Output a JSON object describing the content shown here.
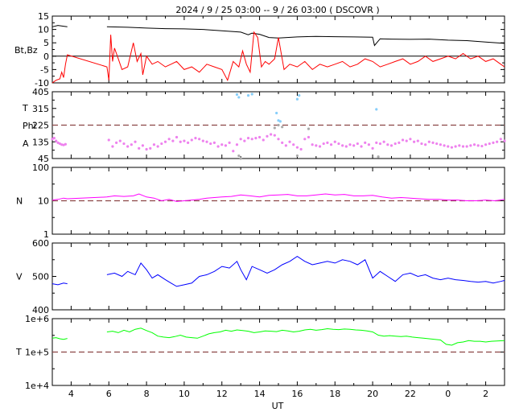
{
  "title": "2024 /   9 / 25   03:00  --   9 / 26   03:00 ( DSCOVR )",
  "x_axis": {
    "label": "UT",
    "ticks": [
      "4",
      "6",
      "8",
      "10",
      "12",
      "14",
      "16",
      "18",
      "20",
      "22",
      "0",
      "2"
    ],
    "range_hours": [
      3,
      27
    ]
  },
  "chart_data": [
    {
      "type": "line",
      "panel": "magnetic field",
      "ylabel": "Bt,Bz",
      "ylim": [
        -10,
        15
      ],
      "yticks": [
        "15",
        "10",
        "5",
        "0",
        "-5",
        "-10"
      ],
      "zero_line": 0,
      "series": [
        {
          "name": "Bt",
          "color": "#000000",
          "x": [
            3.0,
            3.3,
            3.6,
            3.8
          ],
          "y": [
            11,
            11.5,
            11.2,
            11
          ]
        },
        {
          "name": "Bt-2",
          "color": "#000000",
          "x": [
            5.9,
            7,
            8,
            9,
            10,
            11,
            12,
            13,
            13.4,
            13.6,
            14,
            14.5,
            15,
            16,
            17,
            18,
            19,
            20,
            20.1,
            20.4,
            21,
            22,
            23,
            24,
            25,
            26,
            27
          ],
          "y": [
            11,
            10.8,
            10.5,
            10.3,
            10.2,
            10.0,
            9.5,
            9.0,
            8.0,
            8.6,
            8.2,
            7.0,
            6.8,
            7.2,
            7.4,
            7.3,
            7.2,
            7.1,
            4.0,
            6.5,
            6.4,
            6.3,
            6.4,
            6.0,
            5.8,
            5.3,
            4.8
          ]
        },
        {
          "name": "Bz",
          "color": "#ff0000",
          "x": [
            3.0,
            3.2,
            3.4,
            3.5,
            3.6,
            3.7,
            3.8,
            5.9,
            6.0,
            6.1,
            6.2,
            6.3,
            6.5,
            6.7,
            7.0,
            7.3,
            7.5,
            7.7,
            7.8,
            8.0,
            8.3,
            8.6,
            9.0,
            9.3,
            9.6,
            10.0,
            10.4,
            10.8,
            11.2,
            11.6,
            12.0,
            12.3,
            12.6,
            12.9,
            13.1,
            13.3,
            13.5,
            13.7,
            13.9,
            14.1,
            14.3,
            14.5,
            14.8,
            15.0,
            15.3,
            15.6,
            16.0,
            16.4,
            16.8,
            17.2,
            17.6,
            18.0,
            18.4,
            18.8,
            19.2,
            19.6,
            20.0,
            20.4,
            20.8,
            21.2,
            21.6,
            22.0,
            22.4,
            22.8,
            23.2,
            23.6,
            24.0,
            24.4,
            24.8,
            25.2,
            25.6,
            26.0,
            26.4,
            26.8,
            27.0
          ],
          "y": [
            -10,
            -9,
            -8.5,
            -6,
            -8,
            -3,
            0.5,
            -4,
            -9,
            8,
            -2,
            3,
            -1,
            -5,
            -4,
            5,
            -2,
            1,
            -7,
            0,
            -3,
            -2,
            -4,
            -3,
            -2,
            -5,
            -4,
            -6,
            -3,
            -4,
            -5,
            -9,
            -2,
            -4,
            2,
            -3,
            -6,
            9,
            7,
            -4,
            -2,
            -3,
            -1,
            7,
            -5,
            -3,
            -4,
            -2,
            -5,
            -3,
            -4,
            -3,
            -2,
            -4,
            -3,
            -1,
            -2,
            -4,
            -3,
            -2,
            -1,
            -3,
            -2,
            0,
            -2,
            -1,
            0,
            -1,
            1,
            -1,
            0,
            -2,
            -1,
            -3,
            -4
          ]
        }
      ]
    },
    {
      "type": "scatter",
      "panel": "angles",
      "ylabel": "T Phi A",
      "ylim": [
        45,
        405
      ],
      "yticks": [
        "405",
        "315",
        "225",
        "135",
        "45"
      ],
      "reference_line": 225,
      "series": [
        {
          "name": "Phi",
          "color": "#ee82ee",
          "x": [
            3.0,
            3.1,
            3.2,
            3.3,
            3.4,
            3.5,
            3.6,
            3.7,
            6.0,
            6.2,
            6.4,
            6.6,
            6.8,
            7.0,
            7.2,
            7.4,
            7.6,
            7.8,
            8.0,
            8.2,
            8.4,
            8.6,
            8.8,
            9.0,
            9.2,
            9.4,
            9.6,
            9.8,
            10.0,
            10.2,
            10.4,
            10.6,
            10.8,
            11.0,
            11.2,
            11.4,
            11.6,
            11.8,
            12.0,
            12.2,
            12.4,
            12.6,
            12.8,
            13.0,
            13.2,
            13.4,
            13.6,
            13.8,
            14.0,
            14.2,
            14.4,
            14.6,
            14.8,
            15.0,
            15.2,
            15.4,
            15.6,
            15.8,
            16.0,
            16.2,
            16.4,
            16.6,
            16.8,
            17.0,
            17.2,
            17.4,
            17.6,
            17.8,
            18.0,
            18.2,
            18.4,
            18.6,
            18.8,
            19.0,
            19.2,
            19.4,
            19.6,
            19.8,
            20.0,
            20.2,
            20.4,
            20.6,
            20.8,
            21.0,
            21.2,
            21.4,
            21.6,
            21.8,
            22.0,
            22.2,
            22.4,
            22.6,
            22.8,
            23.0,
            23.2,
            23.4,
            23.6,
            23.8,
            24.0,
            24.2,
            24.4,
            24.6,
            24.8,
            25.0,
            25.2,
            25.4,
            25.6,
            25.8,
            26.0,
            26.2,
            26.4,
            26.6,
            26.8,
            27.0
          ],
          "y": [
            150,
            155,
            140,
            130,
            125,
            120,
            118,
            122,
            145,
            110,
            130,
            140,
            125,
            110,
            120,
            135,
            100,
            115,
            95,
            100,
            120,
            110,
            125,
            135,
            150,
            140,
            160,
            135,
            140,
            130,
            145,
            155,
            150,
            140,
            135,
            125,
            130,
            110,
            120,
            115,
            130,
            85,
            120,
            150,
            140,
            155,
            150,
            155,
            160,
            145,
            165,
            175,
            170,
            150,
            130,
            115,
            135,
            120,
            105,
            95,
            150,
            160,
            120,
            115,
            110,
            125,
            130,
            120,
            135,
            125,
            115,
            110,
            120,
            115,
            125,
            110,
            130,
            120,
            100,
            130,
            125,
            135,
            120,
            115,
            125,
            130,
            145,
            140,
            150,
            135,
            140,
            125,
            120,
            135,
            130,
            125,
            120,
            115,
            110,
            105,
            110,
            115,
            110,
            110,
            115,
            120,
            115,
            112,
            120,
            125,
            130,
            135,
            150,
            140
          ]
        },
        {
          "name": "T",
          "color": "#87cefa",
          "x": [
            12.8,
            12.9,
            13.4,
            13.6,
            14.9,
            15.0,
            15.1,
            16.0,
            16.1,
            20.2
          ],
          "y": [
            390,
            375,
            385,
            392,
            290,
            250,
            245,
            365,
            385,
            310
          ]
        },
        {
          "name": "outliers",
          "color": "#a9a9a9",
          "x": [
            12.9,
            13.0,
            14.8,
            15.0,
            15.2,
            16.0,
            16.6,
            20.3
          ],
          "y": [
            60,
            45,
            210,
            225,
            215,
            60,
            205,
            55
          ]
        }
      ]
    },
    {
      "type": "line",
      "panel": "density",
      "ylabel": "N",
      "yscale": "log",
      "ylim": [
        1,
        100
      ],
      "yticks": [
        "100",
        "10",
        "1"
      ],
      "reference_line": 10,
      "series": [
        {
          "name": "N",
          "color": "#ff00ff",
          "x": [
            3.0,
            3.3,
            3.6,
            3.8,
            5.9,
            6.3,
            6.8,
            7.3,
            7.6,
            8.0,
            8.4,
            8.8,
            9.2,
            9.6,
            10.0,
            10.4,
            10.8,
            11.2,
            11.6,
            12.0,
            12.5,
            13.0,
            13.5,
            14.0,
            14.5,
            15.0,
            15.5,
            16.0,
            16.5,
            17.0,
            17.5,
            18.0,
            18.5,
            19.0,
            19.5,
            20.0,
            20.5,
            21.0,
            21.5,
            22.0,
            22.5,
            23.0,
            23.5,
            24.0,
            24.5,
            25.0,
            25.5,
            26.0,
            26.5,
            27.0
          ],
          "y": [
            10.5,
            11,
            12,
            11.5,
            13,
            14,
            13.5,
            14,
            16,
            13,
            12,
            10,
            11,
            9.5,
            10,
            10.5,
            11,
            12,
            12.5,
            13,
            13.5,
            15,
            14,
            13,
            14.5,
            15,
            15.5,
            14,
            14,
            15,
            16,
            15,
            15.5,
            14,
            14,
            14.5,
            13,
            12,
            12.5,
            12,
            11.5,
            11,
            11,
            10.5,
            10.5,
            10,
            10,
            10.5,
            10,
            11
          ]
        }
      ]
    },
    {
      "type": "line",
      "panel": "speed",
      "ylabel": "V",
      "ylim": [
        400,
        600
      ],
      "yticks": [
        "600",
        "500",
        "400"
      ],
      "series": [
        {
          "name": "V",
          "color": "#0000ff",
          "x": [
            3.0,
            3.3,
            3.6,
            3.8
          ],
          "y": [
            478,
            475,
            480,
            478
          ]
        },
        {
          "name": "V-2",
          "color": "#0000ff",
          "x": [
            5.9,
            6.3,
            6.7,
            7.0,
            7.4,
            7.7,
            8.0,
            8.3,
            8.6,
            9.0,
            9.3,
            9.6,
            10.0,
            10.4,
            10.8,
            11.2,
            11.6,
            12.0,
            12.4,
            12.8,
            13.0,
            13.3,
            13.6,
            14.0,
            14.4,
            14.8,
            15.2,
            15.6,
            16.0,
            16.4,
            16.8,
            17.2,
            17.6,
            18.0,
            18.4,
            18.8,
            19.2,
            19.6,
            20.0,
            20.4,
            20.8,
            21.2,
            21.6,
            22.0,
            22.4,
            22.8,
            23.2,
            23.6,
            24.0,
            24.4,
            24.8,
            25.2,
            25.6,
            26.0,
            26.4,
            26.8,
            27.0
          ],
          "y": [
            505,
            510,
            500,
            515,
            505,
            540,
            520,
            495,
            505,
            490,
            480,
            470,
            475,
            480,
            500,
            505,
            515,
            530,
            525,
            545,
            520,
            490,
            530,
            520,
            510,
            520,
            535,
            545,
            560,
            545,
            535,
            540,
            545,
            540,
            550,
            545,
            535,
            550,
            495,
            515,
            500,
            485,
            505,
            510,
            500,
            505,
            495,
            490,
            495,
            490,
            488,
            485,
            483,
            485,
            480,
            485,
            488
          ]
        }
      ]
    },
    {
      "type": "line",
      "panel": "temperature",
      "ylabel": "T",
      "yscale": "log",
      "ylim": [
        10000,
        1000000
      ],
      "yticks": [
        "1e+6",
        "1e+5",
        "1e+4"
      ],
      "reference_line": 100000,
      "series": [
        {
          "name": "T",
          "color": "#00ff00",
          "x": [
            3.0,
            3.2,
            3.4,
            3.6,
            3.8
          ],
          "y": [
            260000,
            270000,
            250000,
            240000,
            255000
          ]
        },
        {
          "name": "T-2",
          "color": "#00ff00",
          "x": [
            5.9,
            6.2,
            6.5,
            6.8,
            7.1,
            7.4,
            7.7,
            8.0,
            8.3,
            8.6,
            8.9,
            9.2,
            9.5,
            9.8,
            10.1,
            10.4,
            10.7,
            11.0,
            11.3,
            11.6,
            11.9,
            12.2,
            12.5,
            12.8,
            13.1,
            13.4,
            13.7,
            14.0,
            14.3,
            14.6,
            14.9,
            15.2,
            15.5,
            15.8,
            16.1,
            16.4,
            16.7,
            17.0,
            17.3,
            17.6,
            17.9,
            18.2,
            18.5,
            18.8,
            19.1,
            19.4,
            19.7,
            20.0,
            20.3,
            20.6,
            20.9,
            21.2,
            21.5,
            21.8,
            22.1,
            22.4,
            22.7,
            23.0,
            23.3,
            23.6,
            23.9,
            24.2,
            24.5,
            24.8,
            25.1,
            25.4,
            25.7,
            26.0,
            26.3,
            26.6,
            27.0
          ],
          "y": [
            400000,
            420000,
            380000,
            450000,
            400000,
            480000,
            520000,
            440000,
            380000,
            300000,
            280000,
            270000,
            290000,
            320000,
            280000,
            270000,
            260000,
            300000,
            350000,
            380000,
            400000,
            450000,
            420000,
            460000,
            440000,
            420000,
            380000,
            400000,
            430000,
            420000,
            410000,
            450000,
            430000,
            400000,
            420000,
            460000,
            480000,
            450000,
            470000,
            500000,
            480000,
            470000,
            490000,
            480000,
            460000,
            450000,
            430000,
            400000,
            320000,
            300000,
            310000,
            300000,
            290000,
            300000,
            280000,
            270000,
            260000,
            250000,
            240000,
            230000,
            170000,
            160000,
            190000,
            200000,
            220000,
            210000,
            210000,
            200000,
            210000,
            215000,
            220000
          ]
        }
      ]
    }
  ]
}
